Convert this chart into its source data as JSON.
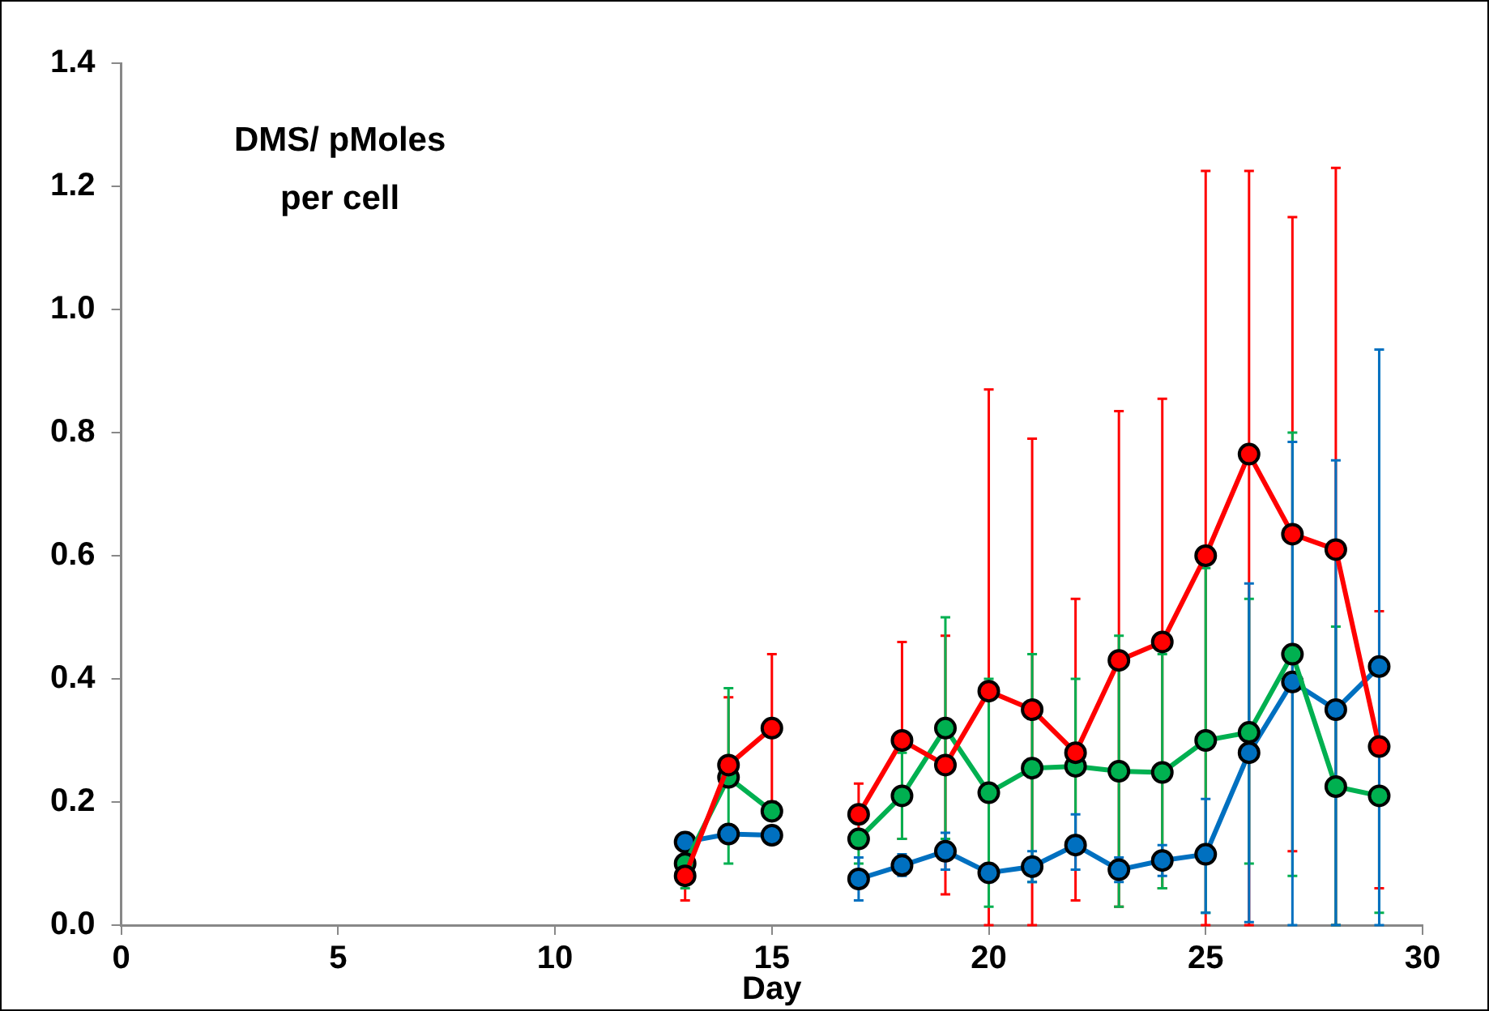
{
  "chart_data": {
    "type": "line",
    "ylabel": "DMS/ pMoles per cell",
    "xlabel": "Day",
    "x": [
      13,
      14,
      15,
      16,
      17,
      18,
      19,
      20,
      21,
      22,
      23,
      24,
      25,
      26,
      27,
      28,
      29
    ],
    "series": [
      {
        "color": "#ff0000",
        "values": [
          0.08,
          0.26,
          0.32,
          null,
          0.18,
          0.3,
          0.26,
          0.38,
          0.35,
          0.28,
          0.43,
          0.46,
          0.6,
          0.765,
          0.635,
          0.61,
          0.29
        ],
        "errors": [
          [
            0.04,
            0.12
          ],
          [
            0.26,
            0.37
          ],
          [
            0.2,
            0.44
          ],
          null,
          [
            0.13,
            0.23
          ],
          [
            0.14,
            0.46
          ],
          [
            0.05,
            0.47
          ],
          [
            0,
            0.87
          ],
          [
            0,
            0.79
          ],
          [
            0.04,
            0.53
          ],
          [
            0.03,
            0.835
          ],
          [
            0.06,
            0.855
          ],
          [
            0,
            1.225
          ],
          [
            0,
            1.225
          ],
          [
            0.12,
            1.15
          ],
          [
            0,
            1.23
          ],
          [
            0.06,
            0.51
          ]
        ]
      },
      {
        "color": "#00b050",
        "values": [
          0.1,
          0.24,
          0.185,
          null,
          0.14,
          0.21,
          0.32,
          0.215,
          0.255,
          0.258,
          0.25,
          0.248,
          0.3,
          0.313,
          0.44,
          0.225,
          0.21
        ],
        "errors": [
          [
            0.06,
            0.14
          ],
          [
            0.1,
            0.385
          ],
          [
            0.17,
            0.2
          ],
          null,
          [
            0.1,
            0.14
          ],
          [
            0.14,
            0.28
          ],
          [
            0.14,
            0.5
          ],
          [
            0.03,
            0.4
          ],
          [
            0.07,
            0.44
          ],
          [
            0.12,
            0.4
          ],
          [
            0.03,
            0.47
          ],
          [
            0.06,
            0.44
          ],
          [
            0.02,
            0.58
          ],
          [
            0.1,
            0.53
          ],
          [
            0.08,
            0.8
          ],
          [
            0,
            0.485
          ],
          [
            0.02,
            0.21
          ]
        ]
      },
      {
        "color": "#0070c0",
        "values": [
          0.135,
          0.148,
          0.146,
          null,
          0.075,
          0.097,
          0.12,
          0.085,
          0.095,
          0.13,
          0.09,
          0.105,
          0.115,
          0.28,
          0.395,
          0.35,
          0.42
        ],
        "errors": [
          [
            0.12,
            0.15
          ],
          null,
          null,
          null,
          [
            0.04,
            0.11
          ],
          [
            0.08,
            0.115
          ],
          [
            0.09,
            0.15
          ],
          [
            0.07,
            0.1
          ],
          [
            0.07,
            0.12
          ],
          [
            0.09,
            0.18
          ],
          [
            0.07,
            0.11
          ],
          [
            0.08,
            0.13
          ],
          [
            0.02,
            0.205
          ],
          [
            0.005,
            0.555
          ],
          [
            0,
            0.785
          ],
          [
            0,
            0.755
          ],
          [
            0,
            0.935
          ]
        ]
      }
    ],
    "marker": "circle",
    "line_style": "solid",
    "grid": false,
    "legend": false,
    "xlim": [
      0,
      30
    ],
    "xticks": [
      0,
      5,
      10,
      15,
      20,
      25,
      30
    ],
    "ylim": [
      0,
      1.4
    ],
    "yticks": [
      {
        "value": 0,
        "label": "0.0"
      },
      {
        "value": 0.2,
        "label": "0.2"
      },
      {
        "value": 0.4,
        "label": "0.4"
      },
      {
        "value": 0.6,
        "label": "0.6"
      },
      {
        "value": 0.8,
        "label": "0.8"
      },
      {
        "value": 1,
        "label": "1.0"
      },
      {
        "value": 1.2,
        "label": "1.2"
      },
      {
        "value": 1.4,
        "label": "1.4"
      }
    ]
  }
}
